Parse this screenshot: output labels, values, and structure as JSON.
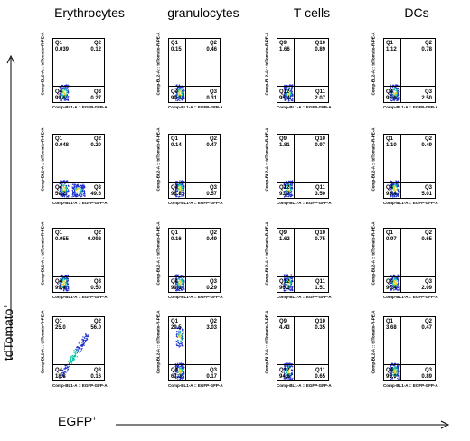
{
  "columns": [
    "Erythrocytes",
    "granulocytes",
    "T cells",
    "DCs"
  ],
  "y_axis_title": "tdTomato",
  "y_axis_sup": "+",
  "x_axis_title": "EGFP",
  "x_axis_sup": "+",
  "panel_x_label": "Comp-BL1-A :: EGFP-GFP-A",
  "panel_y_label": "Comp-BL2-A :: tdTomato-R-PE-A",
  "rows": [
    [
      {
        "names": [
          "Q1",
          "Q2",
          "Q3",
          "Q4"
        ],
        "values": [
          "0.039",
          "0.12",
          "0.27",
          "99.6"
        ]
      },
      {
        "names": [
          "Q1",
          "Q2",
          "Q3",
          "Q4"
        ],
        "values": [
          "0.15",
          "0.46",
          "0.31",
          "99.1"
        ]
      },
      {
        "names": [
          "Q9",
          "Q10",
          "Q11",
          "Q12"
        ],
        "values": [
          "1.66",
          "0.89",
          "2.07",
          "95.4"
        ]
      },
      {
        "names": [
          "Q1",
          "Q2",
          "Q3",
          "Q4"
        ],
        "values": [
          "1.12",
          "0.78",
          "2.50",
          "95.6"
        ]
      }
    ],
    [
      {
        "names": [
          "Q1",
          "Q2",
          "Q3",
          "Q4"
        ],
        "values": [
          "0.048",
          "0.20",
          "49.6",
          "50.2"
        ]
      },
      {
        "names": [
          "Q1",
          "Q2",
          "Q3",
          "Q4"
        ],
        "values": [
          "0.14",
          "0.47",
          "0.57",
          "98.8"
        ]
      },
      {
        "names": [
          "Q9",
          "Q10",
          "Q11",
          "Q12"
        ],
        "values": [
          "1.81",
          "0.97",
          "3.50",
          "93.7"
        ]
      },
      {
        "names": [
          "Q1",
          "Q2",
          "Q3",
          "Q4"
        ],
        "values": [
          "1.10",
          "0.49",
          "5.01",
          "93.4"
        ]
      }
    ],
    [
      {
        "names": [
          "Q1",
          "Q2",
          "Q3",
          "Q4"
        ],
        "values": [
          "0.055",
          "0.092",
          "0.50",
          "99.4"
        ]
      },
      {
        "names": [
          "Q1",
          "Q2",
          "Q3",
          "Q4"
        ],
        "values": [
          "0.16",
          "0.49",
          "0.29",
          "99.1"
        ]
      },
      {
        "names": [
          "Q9",
          "Q10",
          "Q11",
          "Q12"
        ],
        "values": [
          "1.62",
          "0.75",
          "1.51",
          "96.1"
        ]
      },
      {
        "names": [
          "Q1",
          "Q2",
          "Q3",
          "Q4"
        ],
        "values": [
          "0.97",
          "0.65",
          "2.09",
          "96.4"
        ]
      }
    ],
    [
      {
        "names": [
          "Q1",
          "Q2",
          "Q3",
          "Q4"
        ],
        "values": [
          "25.0",
          "56.0",
          "0.16",
          "18.8"
        ]
      },
      {
        "names": [
          "Q1",
          "Q2",
          "Q3",
          "Q4"
        ],
        "values": [
          "29.5",
          "3.03",
          "0.17",
          "67.3"
        ]
      },
      {
        "names": [
          "Q9",
          "Q10",
          "Q11",
          "Q12"
        ],
        "values": [
          "4.43",
          "0.35",
          "0.65",
          "94.6"
        ]
      },
      {
        "names": [
          "Q1",
          "Q2",
          "Q3",
          "Q4"
        ],
        "values": [
          "3.68",
          "0.47",
          "0.89",
          "95.0"
        ]
      }
    ]
  ],
  "colors": {
    "dots": "#2233cc",
    "hot": "#00c8a0",
    "core": "#e8d020",
    "text": "#000000"
  }
}
